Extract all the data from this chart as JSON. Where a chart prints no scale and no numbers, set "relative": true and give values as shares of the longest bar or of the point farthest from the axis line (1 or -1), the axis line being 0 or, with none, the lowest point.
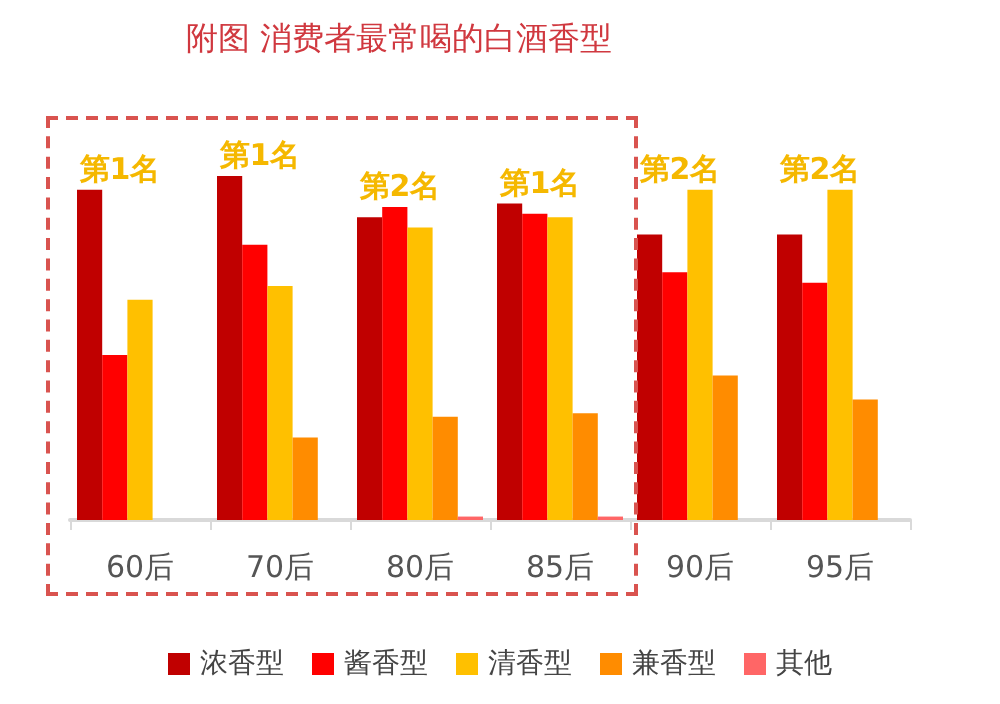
{
  "chart_data": {
    "type": "bar",
    "title": "附图 消费者最常喝的白酒香型",
    "relative": true,
    "categories": [
      "60后",
      "70后",
      "80后",
      "85后",
      "90后",
      "95后"
    ],
    "series": [
      {
        "name": "浓香型",
        "color": "#c00000",
        "values": [
          0.96,
          1,
          0.88,
          0.92,
          0.83,
          0.83
        ]
      },
      {
        "name": "酱香型",
        "color": "#ff0000",
        "values": [
          0.48,
          0.8,
          0.91,
          0.89,
          0.72,
          0.69
        ]
      },
      {
        "name": "清香型",
        "color": "#ffc000",
        "values": [
          0.64,
          0.68,
          0.85,
          0.88,
          0.96,
          0.96
        ]
      },
      {
        "name": "兼香型",
        "color": "#ff8c00",
        "values": [
          0,
          0.24,
          0.3,
          0.31,
          0.42,
          0.35
        ]
      },
      {
        "name": "其他",
        "color": "#ff6666",
        "values": [
          0,
          0,
          0.01,
          0.01,
          0,
          0
        ]
      }
    ],
    "annotations": [
      "第1名",
      "第1名",
      "第2名",
      "第1名",
      "第2名",
      "第2名"
    ],
    "legend": "bottom",
    "grid": false
  }
}
